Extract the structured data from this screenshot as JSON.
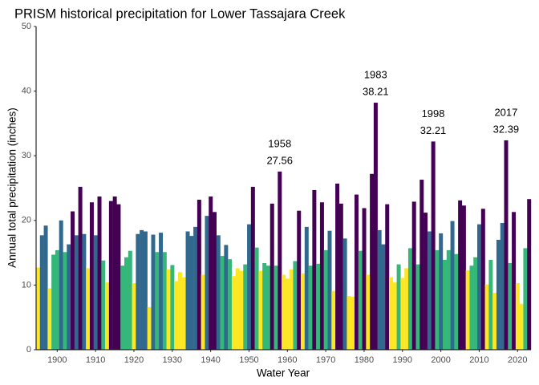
{
  "chart_data": {
    "type": "bar",
    "title": "PRISM historical precipitation for Lower Tassajara Creek",
    "x_label": "Water Year",
    "y_label": "Annual total precipitation (inches)",
    "x": [
      1895,
      1896,
      1897,
      1898,
      1899,
      1900,
      1901,
      1902,
      1903,
      1904,
      1905,
      1906,
      1907,
      1908,
      1909,
      1910,
      1911,
      1912,
      1913,
      1914,
      1915,
      1916,
      1917,
      1918,
      1919,
      1920,
      1921,
      1922,
      1923,
      1924,
      1925,
      1926,
      1927,
      1928,
      1929,
      1930,
      1931,
      1932,
      1933,
      1934,
      1935,
      1936,
      1937,
      1938,
      1939,
      1940,
      1941,
      1942,
      1943,
      1944,
      1945,
      1946,
      1947,
      1948,
      1949,
      1950,
      1951,
      1952,
      1953,
      1954,
      1955,
      1956,
      1957,
      1958,
      1959,
      1960,
      1961,
      1962,
      1963,
      1964,
      1965,
      1966,
      1967,
      1968,
      1969,
      1970,
      1971,
      1972,
      1973,
      1974,
      1975,
      1976,
      1977,
      1978,
      1979,
      1980,
      1981,
      1982,
      1983,
      1984,
      1985,
      1986,
      1987,
      1988,
      1989,
      1990,
      1991,
      1992,
      1993,
      1994,
      1995,
      1996,
      1997,
      1998,
      1999,
      2000,
      2001,
      2002,
      2003,
      2004,
      2005,
      2006,
      2007,
      2008,
      2009,
      2010,
      2011,
      2012,
      2013,
      2014,
      2015,
      2016,
      2017,
      2018,
      2019,
      2020,
      2021,
      2022,
      2023
    ],
    "values": [
      12.7,
      17.7,
      19.2,
      9.5,
      14.7,
      15.4,
      20.0,
      15.1,
      16.3,
      21.4,
      17.7,
      25.2,
      17.9,
      12.6,
      22.8,
      17.7,
      23.7,
      13.8,
      10.4,
      23.0,
      23.7,
      22.5,
      13.0,
      14.3,
      15.3,
      10.3,
      17.9,
      18.5,
      18.3,
      6.6,
      17.8,
      15.1,
      18.1,
      15.1,
      12.4,
      13.1,
      10.6,
      12.0,
      11.2,
      18.3,
      17.6,
      19.0,
      23.2,
      11.6,
      20.7,
      23.7,
      21.3,
      17.7,
      14.5,
      16.2,
      14.0,
      11.4,
      12.6,
      12.2,
      13.2,
      19.4,
      25.2,
      15.8,
      12.2,
      13.4,
      13.0,
      22.6,
      13.0,
      27.56,
      11.6,
      11.0,
      12.4,
      13.7,
      21.5,
      11.8,
      19.0,
      13.0,
      24.7,
      13.3,
      22.8,
      15.4,
      18.4,
      9.1,
      25.7,
      22.6,
      17.2,
      8.3,
      8.2,
      24.0,
      15.3,
      21.9,
      11.6,
      27.2,
      38.21,
      18.5,
      16.3,
      22.5,
      11.2,
      10.4,
      13.2,
      11.1,
      12.6,
      15.7,
      22.9,
      13.2,
      26.3,
      21.2,
      18.3,
      32.21,
      15.4,
      18.0,
      13.9,
      15.4,
      19.9,
      14.8,
      23.1,
      22.3,
      12.3,
      13.0,
      14.3,
      19.4,
      21.8,
      10.1,
      13.9,
      8.8,
      17.0,
      19.6,
      32.39,
      13.4,
      21.3,
      10.3,
      7.1,
      15.7,
      23.3
    ],
    "colors": [
      "#fde725",
      "#31688e",
      "#31688e",
      "#fde725",
      "#35b779",
      "#35b779",
      "#31688e",
      "#35b779",
      "#31688e",
      "#440154",
      "#31688e",
      "#440154",
      "#31688e",
      "#fde725",
      "#440154",
      "#31688e",
      "#440154",
      "#35b779",
      "#fde725",
      "#440154",
      "#440154",
      "#440154",
      "#35b779",
      "#35b779",
      "#35b779",
      "#fde725",
      "#31688e",
      "#31688e",
      "#31688e",
      "#fde725",
      "#31688e",
      "#35b779",
      "#31688e",
      "#35b779",
      "#fde725",
      "#35b779",
      "#fde725",
      "#fde725",
      "#fde725",
      "#31688e",
      "#31688e",
      "#31688e",
      "#440154",
      "#fde725",
      "#31688e",
      "#440154",
      "#440154",
      "#31688e",
      "#35b779",
      "#31688e",
      "#35b779",
      "#fde725",
      "#fde725",
      "#fde725",
      "#35b779",
      "#31688e",
      "#440154",
      "#35b779",
      "#fde725",
      "#35b779",
      "#35b779",
      "#440154",
      "#35b779",
      "#440154",
      "#fde725",
      "#fde725",
      "#fde725",
      "#35b779",
      "#440154",
      "#fde725",
      "#31688e",
      "#35b779",
      "#440154",
      "#35b779",
      "#440154",
      "#35b779",
      "#31688e",
      "#fde725",
      "#440154",
      "#440154",
      "#31688e",
      "#fde725",
      "#fde725",
      "#440154",
      "#35b779",
      "#440154",
      "#fde725",
      "#440154",
      "#440154",
      "#31688e",
      "#31688e",
      "#440154",
      "#fde725",
      "#fde725",
      "#35b779",
      "#fde725",
      "#fde725",
      "#35b779",
      "#440154",
      "#35b779",
      "#440154",
      "#440154",
      "#31688e",
      "#440154",
      "#35b779",
      "#31688e",
      "#35b779",
      "#35b779",
      "#31688e",
      "#35b779",
      "#440154",
      "#440154",
      "#fde725",
      "#35b779",
      "#35b779",
      "#31688e",
      "#440154",
      "#fde725",
      "#35b779",
      "#fde725",
      "#31688e",
      "#31688e",
      "#440154",
      "#35b779",
      "#440154",
      "#fde725",
      "#fde725",
      "#35b779",
      "#440154"
    ],
    "annotated_years": [
      1958,
      1983,
      1998,
      2017
    ],
    "xlim": [
      1894.5,
      2023.5
    ],
    "xticks": [
      1900,
      1910,
      1920,
      1930,
      1940,
      1950,
      1960,
      1970,
      1980,
      1990,
      2000,
      2010,
      2020
    ],
    "ylim": [
      0,
      50
    ],
    "yticks": [
      0,
      10,
      20,
      30,
      40,
      50
    ]
  }
}
